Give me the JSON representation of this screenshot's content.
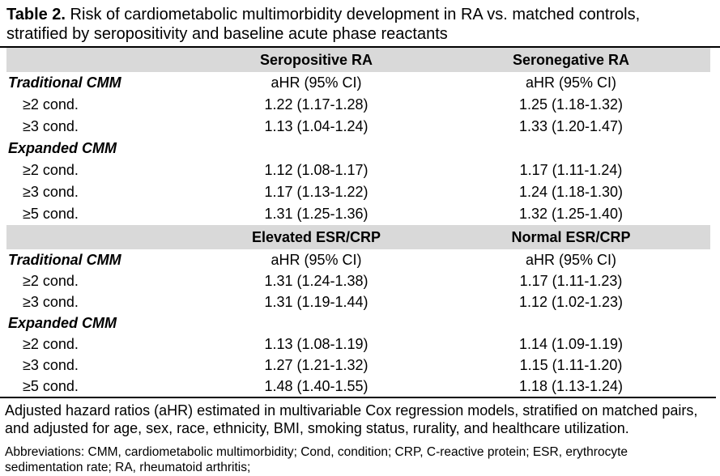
{
  "title": {
    "prefix": "Table 2.",
    "rest": " Risk of cardiometabolic multimorbidity development in RA vs. matched controls, stratified by seropositivity and baseline acute phase reactants"
  },
  "colors": {
    "header_band_bg": "#d9d9d9",
    "text": "#000000",
    "rule": "#000000"
  },
  "table": {
    "sections": [
      {
        "header": {
          "col1": "",
          "col2": "Seropositive RA",
          "col3": "Seronegative RA"
        },
        "rows": [
          {
            "style": "group",
            "label": "Traditional CMM",
            "col2": "aHR (95% CI)",
            "col3": "aHR (95% CI)"
          },
          {
            "style": "item",
            "label": "≥2 cond.",
            "col2": "1.22 (1.17-1.28)",
            "col3": "1.25 (1.18-1.32)"
          },
          {
            "style": "item",
            "label": "≥3 cond.",
            "col2": "1.13 (1.04-1.24)",
            "col3": "1.33 (1.20-1.47)"
          },
          {
            "style": "group",
            "label": "Expanded CMM",
            "col2": "",
            "col3": ""
          },
          {
            "style": "item",
            "label": "≥2 cond.",
            "col2": "1.12 (1.08-1.17)",
            "col3": "1.17 (1.11-1.24)"
          },
          {
            "style": "item",
            "label": "≥3 cond.",
            "col2": "1.17 (1.13-1.22)",
            "col3": "1.24 (1.18-1.30)"
          },
          {
            "style": "item",
            "label": "≥5 cond.",
            "col2": "1.31 (1.25-1.36)",
            "col3": "1.32 (1.25-1.40)"
          }
        ]
      },
      {
        "header": {
          "col1": "",
          "col2": "Elevated ESR/CRP",
          "col3": "Normal ESR/CRP"
        },
        "rows": [
          {
            "style": "group",
            "label": "Traditional CMM",
            "col2": "aHR (95% CI)",
            "col3": "aHR (95% CI)"
          },
          {
            "style": "item",
            "label": "≥2 cond.",
            "col2": "1.31 (1.24-1.38)",
            "col3": "1.17 (1.11-1.23)"
          },
          {
            "style": "item",
            "label": "≥3 cond.",
            "col2": "1.31 (1.19-1.44)",
            "col3": "1.12 (1.02-1.23)"
          },
          {
            "style": "group",
            "label": "Expanded CMM",
            "col2": "",
            "col3": ""
          },
          {
            "style": "item",
            "label": "≥2 cond.",
            "col2": "1.13 (1.08-1.19)",
            "col3": "1.14 (1.09-1.19)"
          },
          {
            "style": "item",
            "label": "≥3 cond.",
            "col2": "1.27 (1.21-1.32)",
            "col3": "1.15 (1.11-1.20)"
          },
          {
            "style": "item",
            "label": "≥5 cond.",
            "col2": "1.48 (1.40-1.55)",
            "col3": "1.18 (1.13-1.24)"
          }
        ]
      }
    ]
  },
  "footnotes": {
    "note": "Adjusted hazard ratios (aHR) estimated in multivariable Cox regression models, stratified on matched pairs, and adjusted for age, sex, race, ethnicity, BMI, smoking status, rurality, and healthcare utilization.",
    "abbreviations": "Abbreviations: CMM, cardiometabolic multimorbidity; Cond, condition; CRP, C-reactive protein; ESR, erythrocyte sedimentation rate; RA, rheumatoid arthritis;"
  }
}
